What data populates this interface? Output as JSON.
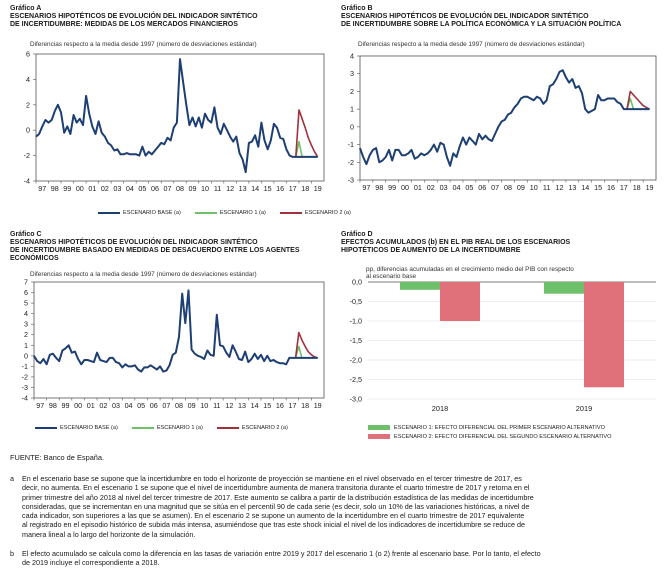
{
  "colors": {
    "base": "#1d3f73",
    "s1": "#6fc06a",
    "s2": "#a3303d",
    "d1": "#6fc06a",
    "d2": "#e0707a",
    "axis": "#555555",
    "grid": "#dddddd"
  },
  "years": [
    "97",
    "98",
    "99",
    "00",
    "01",
    "02",
    "03",
    "04",
    "05",
    "06",
    "07",
    "08",
    "09",
    "10",
    "11",
    "12",
    "13",
    "14",
    "15",
    "16",
    "17",
    "18",
    "19"
  ],
  "panels": {
    "A": {
      "label": "Gráfico A",
      "title1": "ESCENARIOS HIPOTÉTICOS DE EVOLUCIÓN DEL INDICADOR SINTÉTICO",
      "title2": "DE INCERTIDUMBRE: MEDIDAS DE LOS MERCADOS FINANCIEROS",
      "subtitle": "Diferencias respecto a la media desde 1997 (número de desviaciones estándar)",
      "yticks": [
        "6",
        "4",
        "2",
        "0",
        "-2",
        "-4"
      ]
    },
    "B": {
      "label": "Gráfico B",
      "title1": "ESCENARIOS HIPOTÉTICOS DE EVOLUCIÓN DEL INDICADOR SINTÉTICO",
      "title2": "DE INCERTIDUMBRE SOBRE LA POLÍTICA ECONÓMICA Y LA SITUACIÓN POLÍTICA",
      "subtitle": "Diferencias respecto a la media desde 1997 (número de desviaciones estándar)",
      "yticks": [
        "4",
        "3",
        "2",
        "1",
        "0",
        "-1",
        "-2",
        "-3"
      ]
    },
    "C": {
      "label": "Gráfico C",
      "title1": "ESCENARIOS HIPOTÉTICOS DE EVOLUCIÓN DEL INDICADOR SINTÉTICO",
      "title2": "DE INCERTIDUMBRE BASADO EN MEDIDAS DE DESACUERDO ENTRE LOS AGENTES",
      "title3": "ECONÓMICOS",
      "subtitle": "Diferencias respecto a la media desde 1997 (número de desviaciones estándar)",
      "yticks": [
        "7",
        "6",
        "5",
        "4",
        "3",
        "2",
        "1",
        "0",
        "-1",
        "-2",
        "-3",
        "-4"
      ]
    },
    "D": {
      "label": "Gráfico D",
      "title1": "EFECTOS ACUMULADOS (b) EN EL PIB REAL DE LOS ESCENARIOS",
      "title2": "HIPOTÉTICOS DE AUMENTO DE LA INCERTIDUMBRE",
      "subtitle1": "pp, diferencias acumuladas en el crecimiento medio del PIB con respecto",
      "subtitle2": "al escenario base",
      "yticks": [
        "0,0",
        "-0,5",
        "-1,0",
        "-1,5",
        "-2,0",
        "-2,5",
        "-3,0"
      ]
    }
  },
  "legend_lines": {
    "base": "ESCENARIO BASE (a)",
    "s1": "ESCENARIO 1 (a)",
    "s2": "ESCENARIO 2 (a)"
  },
  "legend_bars": {
    "d1": "ESCENARIO 1: EFECTO DIFERENCIAL DEL PRIMER ESCENARIO ALTERNATIVO",
    "d2": "ESCENARIO 2: EFECTO DIFERENCIAL DEL SEGUNDO ESCENARIO ALTERNATIVO"
  },
  "chart_data": [
    {
      "id": "A",
      "type": "line",
      "ylim": [
        -4,
        6
      ],
      "x_range": [
        1997,
        2020
      ],
      "series": [
        {
          "name": "ESCENARIO BASE (a)",
          "x": [
            1997.0,
            1997.25,
            1997.5,
            1997.75,
            1998.0,
            1998.25,
            1998.5,
            1998.75,
            1999.0,
            1999.25,
            1999.5,
            1999.75,
            2000.0,
            2000.25,
            2000.5,
            2000.75,
            2001.0,
            2001.25,
            2001.5,
            2001.75,
            2002.0,
            2002.25,
            2002.5,
            2002.75,
            2003.0,
            2003.25,
            2003.5,
            2003.75,
            2004.0,
            2004.25,
            2004.5,
            2004.75,
            2005.0,
            2005.25,
            2005.5,
            2005.75,
            2006.0,
            2006.25,
            2006.5,
            2006.75,
            2007.0,
            2007.25,
            2007.5,
            2007.75,
            2008.0,
            2008.25,
            2008.5,
            2008.75,
            2009.0,
            2009.25,
            2009.5,
            2009.75,
            2010.0,
            2010.25,
            2010.5,
            2010.75,
            2011.0,
            2011.25,
            2011.5,
            2011.75,
            2012.0,
            2012.25,
            2012.5,
            2012.75,
            2013.0,
            2013.25,
            2013.5,
            2013.75,
            2014.0,
            2014.25,
            2014.5,
            2014.75,
            2015.0,
            2015.25,
            2015.5,
            2015.75,
            2016.0,
            2016.25,
            2016.5,
            2016.75,
            2017.0,
            2017.25,
            2017.5,
            2017.75,
            2018.0,
            2018.25,
            2018.5,
            2018.75,
            2019.0,
            2019.25,
            2019.5
          ],
          "values": [
            -0.5,
            -0.3,
            0.3,
            0.8,
            0.6,
            0.8,
            1.5,
            2.0,
            1.4,
            -0.2,
            0.3,
            -0.3,
            1.2,
            0.6,
            0.9,
            0.4,
            2.7,
            1.3,
            0.3,
            -0.3,
            0.7,
            -0.2,
            -0.5,
            -1.0,
            -1.2,
            -1.6,
            -1.5,
            -1.9,
            -1.9,
            -1.8,
            -1.9,
            -1.9,
            -1.9,
            -2.0,
            -1.3,
            -2.0,
            -1.7,
            -1.9,
            -1.6,
            -1.3,
            -1.0,
            -1.1,
            -0.6,
            -0.8,
            0.2,
            0.6,
            5.6,
            3.8,
            2.0,
            0.4,
            1.0,
            0.3,
            1.0,
            0.2,
            1.3,
            0.8,
            0.6,
            1.8,
            0.2,
            -0.3,
            0.5,
            0.0,
            -0.5,
            -0.9,
            -0.5,
            -1.8,
            -2.3,
            -3.3,
            -1.0,
            -0.9,
            -0.4,
            -1.3,
            0.6,
            -0.8,
            -1.5,
            -0.8,
            0.5,
            0.2,
            -0.6,
            -0.7,
            -1.5,
            -2.0,
            -2.1,
            -2.1,
            -2.1,
            -2.1,
            -2.1,
            -2.1,
            -2.1,
            -2.1,
            -2.1
          ]
        },
        {
          "name": "ESCENARIO 1 (a)",
          "x": [
            2017.75,
            2018.0,
            2018.25
          ],
          "values": [
            -2.1,
            -0.9,
            -2.1
          ]
        },
        {
          "name": "ESCENARIO 2 (a)",
          "x": [
            2017.75,
            2018.0,
            2018.25,
            2018.5,
            2018.75,
            2019.0,
            2019.25,
            2019.5
          ],
          "values": [
            -2.1,
            1.6,
            0.9,
            0.2,
            -0.6,
            -1.2,
            -1.7,
            -2.1
          ]
        }
      ]
    },
    {
      "id": "B",
      "type": "line",
      "ylim": [
        -3,
        4
      ],
      "x_range": [
        1997,
        2020
      ],
      "series": [
        {
          "name": "ESCENARIO BASE (a)",
          "x": [
            1997.0,
            1997.25,
            1997.5,
            1997.75,
            1998.0,
            1998.25,
            1998.5,
            1998.75,
            1999.0,
            1999.25,
            1999.5,
            1999.75,
            2000.0,
            2000.25,
            2000.5,
            2000.75,
            2001.0,
            2001.25,
            2001.5,
            2001.75,
            2002.0,
            2002.25,
            2002.5,
            2002.75,
            2003.0,
            2003.25,
            2003.5,
            2003.75,
            2004.0,
            2004.25,
            2004.5,
            2004.75,
            2005.0,
            2005.25,
            2005.5,
            2005.75,
            2006.0,
            2006.25,
            2006.5,
            2006.75,
            2007.0,
            2007.25,
            2007.5,
            2007.75,
            2008.0,
            2008.25,
            2008.5,
            2008.75,
            2009.0,
            2009.25,
            2009.5,
            2009.75,
            2010.0,
            2010.25,
            2010.5,
            2010.75,
            2011.0,
            2011.25,
            2011.5,
            2011.75,
            2012.0,
            2012.25,
            2012.5,
            2012.75,
            2013.0,
            2013.25,
            2013.5,
            2013.75,
            2014.0,
            2014.25,
            2014.5,
            2014.75,
            2015.0,
            2015.25,
            2015.5,
            2015.75,
            2016.0,
            2016.25,
            2016.5,
            2016.75,
            2017.0,
            2017.25,
            2017.5,
            2017.75,
            2018.0,
            2018.25,
            2018.5,
            2018.75,
            2019.0,
            2019.25,
            2019.5
          ],
          "values": [
            -1.2,
            -1.7,
            -2.1,
            -1.6,
            -1.3,
            -1.2,
            -2.0,
            -1.9,
            -1.7,
            -1.3,
            -1.9,
            -1.3,
            -1.3,
            -1.6,
            -1.6,
            -1.5,
            -1.3,
            -1.8,
            -1.7,
            -1.5,
            -1.6,
            -1.5,
            -1.3,
            -1.0,
            -1.4,
            -0.9,
            -1.0,
            -1.7,
            -2.2,
            -1.5,
            -1.7,
            -1.1,
            -0.6,
            -1.0,
            -0.6,
            -0.8,
            -1.0,
            -0.4,
            -0.7,
            -0.5,
            -0.7,
            -0.8,
            -0.4,
            0.0,
            0.3,
            0.4,
            0.7,
            0.8,
            1.1,
            1.3,
            1.6,
            1.7,
            1.7,
            1.6,
            1.5,
            1.7,
            1.6,
            1.3,
            1.5,
            2.3,
            2.4,
            2.7,
            3.1,
            3.2,
            2.8,
            2.5,
            2.7,
            2.2,
            2.3,
            1.9,
            1.0,
            0.8,
            0.9,
            1.0,
            1.8,
            1.5,
            1.5,
            1.6,
            1.6,
            1.6,
            1.4,
            1.3,
            1.0,
            1.0,
            1.0,
            1.0,
            1.0,
            1.0,
            1.0,
            1.0,
            1.0
          ]
        },
        {
          "name": "ESCENARIO 1 (a)",
          "x": [
            2017.75,
            2018.0,
            2018.25
          ],
          "values": [
            1.0,
            1.6,
            1.0
          ]
        },
        {
          "name": "ESCENARIO 2 (a)",
          "x": [
            2017.75,
            2018.0,
            2018.25,
            2018.5,
            2018.75,
            2019.0,
            2019.25,
            2019.5
          ],
          "values": [
            1.0,
            2.0,
            1.8,
            1.6,
            1.4,
            1.2,
            1.1,
            1.0
          ]
        }
      ]
    },
    {
      "id": "C",
      "type": "line",
      "ylim": [
        -4,
        7
      ],
      "x_range": [
        1997,
        2020
      ],
      "series": [
        {
          "name": "ESCENARIO BASE (a)",
          "x": [
            1997.0,
            1997.25,
            1997.5,
            1997.75,
            1998.0,
            1998.25,
            1998.5,
            1998.75,
            1999.0,
            1999.25,
            1999.5,
            1999.75,
            2000.0,
            2000.25,
            2000.5,
            2000.75,
            2001.0,
            2001.25,
            2001.5,
            2001.75,
            2002.0,
            2002.25,
            2002.5,
            2002.75,
            2003.0,
            2003.25,
            2003.5,
            2003.75,
            2004.0,
            2004.25,
            2004.5,
            2004.75,
            2005.0,
            2005.25,
            2005.5,
            2005.75,
            2006.0,
            2006.25,
            2006.5,
            2006.75,
            2007.0,
            2007.25,
            2007.5,
            2007.75,
            2008.0,
            2008.25,
            2008.5,
            2008.75,
            2009.0,
            2009.25,
            2009.5,
            2009.75,
            2010.0,
            2010.25,
            2010.5,
            2010.75,
            2011.0,
            2011.25,
            2011.5,
            2011.75,
            2012.0,
            2012.25,
            2012.5,
            2012.75,
            2013.0,
            2013.25,
            2013.5,
            2013.75,
            2014.0,
            2014.25,
            2014.5,
            2014.75,
            2015.0,
            2015.25,
            2015.5,
            2015.75,
            2016.0,
            2016.25,
            2016.5,
            2016.75,
            2017.0,
            2017.25,
            2017.5,
            2017.75,
            2018.0,
            2018.25,
            2018.5,
            2018.75,
            2019.0,
            2019.25,
            2019.5
          ],
          "values": [
            0.0,
            -0.5,
            -0.7,
            -0.3,
            -0.8,
            0.1,
            0.2,
            -0.2,
            -0.5,
            0.5,
            0.7,
            1.0,
            0.3,
            0.4,
            -0.3,
            -0.8,
            -0.4,
            -0.4,
            -0.5,
            -0.6,
            0.3,
            -0.4,
            -0.5,
            -0.6,
            -0.2,
            -0.2,
            -0.6,
            -0.7,
            -1.1,
            -0.8,
            -1.0,
            -1.0,
            -0.9,
            -1.3,
            -1.5,
            -1.1,
            -1.1,
            -0.9,
            -1.1,
            -1.3,
            -1.0,
            -1.5,
            -1.4,
            -0.9,
            0.1,
            0.3,
            1.8,
            5.9,
            3.1,
            6.2,
            0.6,
            0.2,
            0.0,
            -0.1,
            -0.3,
            0.5,
            0.1,
            0.0,
            3.9,
            1.0,
            0.9,
            0.3,
            -0.1,
            1.0,
            0.4,
            -0.3,
            -0.4,
            0.4,
            -0.6,
            -0.3,
            0.2,
            -0.3,
            0.1,
            -0.5,
            0.0,
            -0.5,
            -0.4,
            -0.6,
            -0.7,
            -0.7,
            -0.8,
            -0.2,
            -0.2,
            -0.2,
            -0.2,
            -0.2,
            -0.2,
            -0.2,
            -0.2,
            -0.2,
            -0.2
          ]
        },
        {
          "name": "ESCENARIO 1 (a)",
          "x": [
            2017.75,
            2018.0,
            2018.25
          ],
          "values": [
            -0.2,
            0.9,
            -0.2
          ]
        },
        {
          "name": "ESCENARIO 2 (a)",
          "x": [
            2017.75,
            2018.0,
            2018.25,
            2018.5,
            2018.75,
            2019.0,
            2019.25,
            2019.5
          ],
          "values": [
            -0.2,
            2.2,
            1.5,
            0.9,
            0.4,
            0.1,
            -0.1,
            -0.2
          ]
        }
      ]
    },
    {
      "id": "D",
      "type": "bar",
      "categories": [
        "2018",
        "2019"
      ],
      "ylim": [
        -3.0,
        0.0
      ],
      "series": [
        {
          "name": "ESCENARIO 1: EFECTO DIFERENCIAL DEL PRIMER ESCENARIO ALTERNATIVO",
          "values": [
            -0.2,
            -0.3
          ]
        },
        {
          "name": "ESCENARIO 2: EFECTO DIFERENCIAL DEL SEGUNDO ESCENARIO ALTERNATIVO",
          "values": [
            -1.0,
            -2.7
          ]
        }
      ]
    }
  ],
  "footer": {
    "fuente": "FUENTE: Banco de España.",
    "notes": [
      {
        "letter": "a",
        "lines": [
          "En el escenario base se supone que la incertidumbre en todo el horizonte de proyección se mantiene en el nivel observado en el tercer trimestre de 2017, es",
          "decir, no aumenta. En el escenario 1 se supone que el nivel de incertidumbre aumenta de manera transitoria durante el cuarto trimestre de 2017 y retorna en el",
          "primer trimestre del año 2018 al nivel del tercer trimestre de 2017. Este aumento se calibra a partir de la distribución estadística de las medidas de incertidumbre",
          "consideradas, que se incrementan en una magnitud que se sitúa en el percentil 90 de cada serie (es decir, solo un 10% de las variaciones históricas, a nivel de",
          "cada indicador, son superiores a las que se asumen). En el escenario 2 se supone un aumento de la incertidumbre en el cuarto trimestre de 2017 equivalente",
          "al registrado en el episodio histórico de subida más intensa, asumiéndose que tras este shock inicial el nivel de los indicadores de incertidumbre se reduce de",
          "manera lineal a lo largo del horizonte de la simulación."
        ]
      },
      {
        "letter": "b",
        "lines": [
          "El efecto acumulado se calcula como la diferencia en las tasas de variación entre 2019 y 2017 del escenario 1 (o 2) frente al escenario base. Por lo tanto, el efecto",
          "de 2019 incluye el correspondiente a 2018."
        ]
      }
    ]
  }
}
